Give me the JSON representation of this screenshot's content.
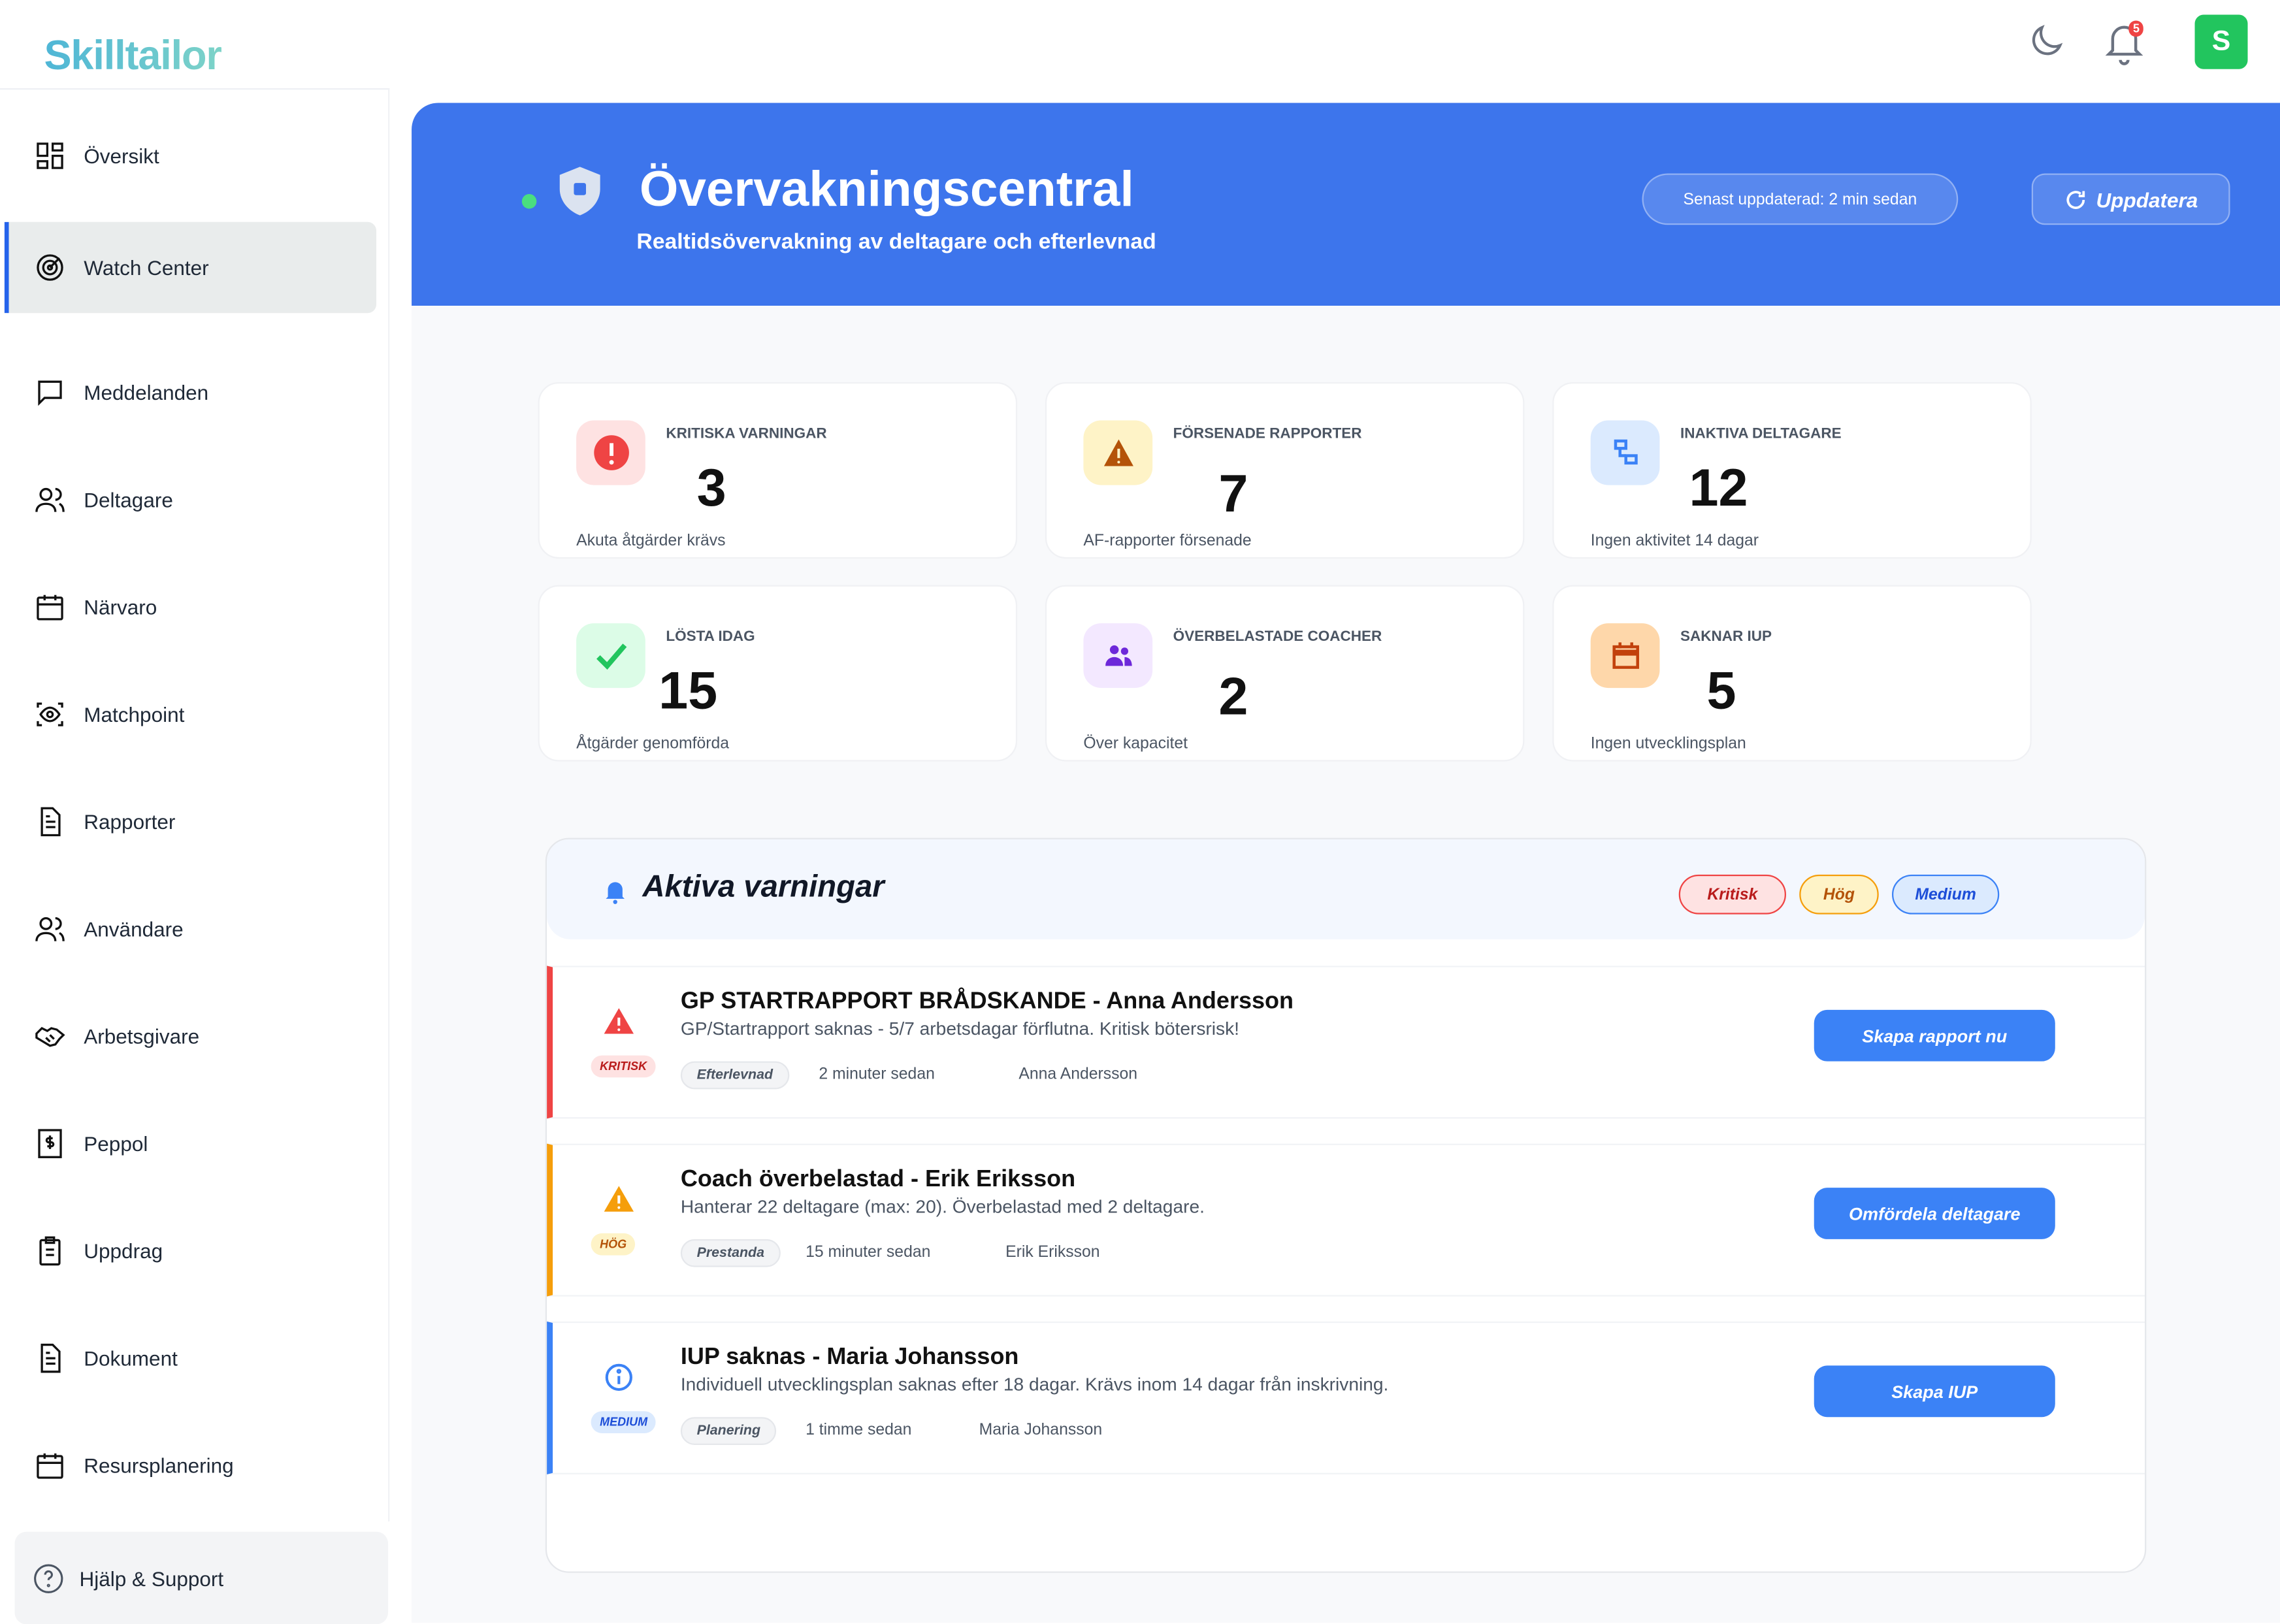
{
  "brand": {
    "logo": "Skilltailor"
  },
  "topbar": {
    "notification_count": "5",
    "avatar_initial": "S",
    "avatar_color": "#22c55e"
  },
  "sidebar": {
    "items": [
      {
        "label": "Översikt",
        "icon": "grid-icon"
      },
      {
        "label": "Watch Center",
        "icon": "radar-icon",
        "active": true
      },
      {
        "label": "Meddelanden",
        "icon": "message-icon"
      },
      {
        "label": "Deltagare",
        "icon": "users-icon"
      },
      {
        "label": "Närvaro",
        "icon": "calendar-icon"
      },
      {
        "label": "Matchpoint",
        "icon": "eye-scan-icon"
      },
      {
        "label": "Rapporter",
        "icon": "file-text-icon"
      },
      {
        "label": "Användare",
        "icon": "users-icon"
      },
      {
        "label": "Arbetsgivare",
        "icon": "handshake-icon"
      },
      {
        "label": "Peppol",
        "icon": "receipt-icon"
      },
      {
        "label": "Uppdrag",
        "icon": "clipboard-icon"
      },
      {
        "label": "Dokument",
        "icon": "file-text-icon"
      },
      {
        "label": "Resursplanering",
        "icon": "calendar-icon"
      }
    ],
    "help": "Hjälp & Support"
  },
  "header": {
    "title": "Övervakningscentral",
    "subtitle": "Realtidsövervakning av deltagare och efterlevnad",
    "last_updated": "Senast uppdaterad: 2 min sedan",
    "refresh_label": "Uppdatera",
    "accent": "#3d75ec"
  },
  "stats": [
    {
      "label": "Kritiska varningar",
      "value": "3",
      "sub": "Akuta åtgärder krävs",
      "color": "#ef4444",
      "bg": "#fee2e2"
    },
    {
      "label": "Försenade rapporter",
      "value": "7",
      "sub": "AF-rapporter försenade",
      "color": "#b45309",
      "bg": "#fef3c7"
    },
    {
      "label": "Inaktiva deltagare",
      "value": "12",
      "sub": "Ingen aktivitet 14 dagar",
      "color": "#3b82f6",
      "bg": "#dbeafe"
    },
    {
      "label": "Lösta idag",
      "value": "15",
      "sub": "Åtgärder genomförda",
      "color": "#22c55e",
      "bg": "#dcfce7"
    },
    {
      "label": "Överbelastade coacher",
      "value": "2",
      "sub": "Över kapacitet",
      "color": "#6d28d9",
      "bg": "#f3e8ff"
    },
    {
      "label": "Saknar IUP",
      "value": "5",
      "sub": "Ingen utvecklingsplan",
      "color": "#c2410c",
      "bg": "#fed7aa"
    }
  ],
  "alerts": {
    "title": "Aktiva varningar",
    "filters": [
      "Kritisk",
      "Hög",
      "Medium"
    ],
    "items": [
      {
        "severity": "KRITISK",
        "title": "GP STARTRAPPORT BRÅDSKANDE - Anna Andersson",
        "description": "GP/Startrapport saknas - 5/7 arbetsdagar förflutna. Kritisk bötersrisk!",
        "category": "Efterlevnad",
        "time": "2 minuter sedan",
        "person": "Anna Andersson",
        "action": "Skapa rapport nu",
        "color": "#ef4444"
      },
      {
        "severity": "HÖG",
        "title": "Coach överbelastad - Erik Eriksson",
        "description": "Hanterar 22 deltagare (max: 20). Överbelastad med 2 deltagare.",
        "category": "Prestanda",
        "time": "15 minuter sedan",
        "person": "Erik Eriksson",
        "action": "Omfördela deltagare",
        "color": "#f59e0b"
      },
      {
        "severity": "MEDIUM",
        "title": "IUP saknas - Maria Johansson",
        "description": "Individuell utvecklingsplan saknas efter 18 dagar. Krävs inom 14 dagar från inskrivning.",
        "category": "Planering",
        "time": "1 timme sedan",
        "person": "Maria Johansson",
        "action": "Skapa IUP",
        "color": "#3b82f6"
      }
    ]
  }
}
